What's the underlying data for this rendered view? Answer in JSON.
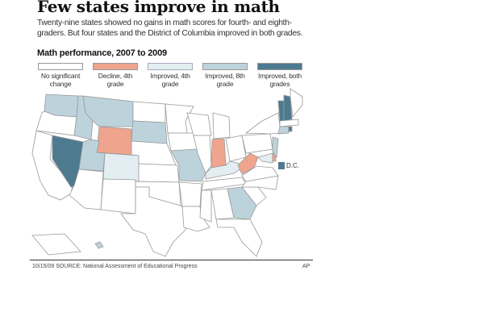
{
  "header": {
    "title": "Few states improve in math",
    "subtitle": "Twenty-nine states showed no gains in math scores for fourth- and eighth-graders. But four states and the District of Columbia improved in both grades."
  },
  "legend": {
    "title": "Math performance, 2007 to 2009",
    "items": [
      {
        "key": "none",
        "label": "No significant change",
        "color": "#ffffff"
      },
      {
        "key": "decline4",
        "label": "Decline, 4th grade",
        "color": "#efa58d"
      },
      {
        "key": "imp4",
        "label": "Improved, 4th grade",
        "color": "#e3eef2"
      },
      {
        "key": "imp8",
        "label": "Improved, 8th grade",
        "color": "#bdd3dc"
      },
      {
        "key": "both",
        "label": "Improved, both grades",
        "color": "#4e7a90"
      }
    ]
  },
  "states": {
    "WA": "imp8",
    "OR": "none",
    "CA": "none",
    "NV": "both",
    "ID": "imp8",
    "MT": "imp8",
    "WY": "decline4",
    "UT": "imp8",
    "CO": "imp4",
    "AZ": "none",
    "NM": "none",
    "ND": "none",
    "SD": "imp8",
    "NE": "none",
    "KS": "none",
    "OK": "none",
    "TX": "none",
    "MN": "none",
    "IA": "none",
    "MO": "imp8",
    "AR": "none",
    "LA": "none",
    "WI": "none",
    "IL": "none",
    "MI": "none",
    "IN": "decline4",
    "OH": "none",
    "KY": "imp4",
    "TN": "none",
    "MS": "none",
    "AL": "none",
    "GA": "imp8",
    "FL": "none",
    "SC": "none",
    "NC": "none",
    "VA": "none",
    "WV": "decline4",
    "PA": "none",
    "NY": "none",
    "MD": "imp4",
    "DE": "decline4",
    "NJ": "imp8",
    "VT": "both",
    "NH": "both",
    "ME": "none",
    "MA": "none",
    "CT": "imp8",
    "RI": "both",
    "AK": "none",
    "HI": "imp8"
  },
  "dc": {
    "label": "D.C.",
    "category": "both"
  },
  "footer": {
    "source": "10/15/09 SOURCE: National Assessment of Educational Progress",
    "credit": "AP"
  }
}
